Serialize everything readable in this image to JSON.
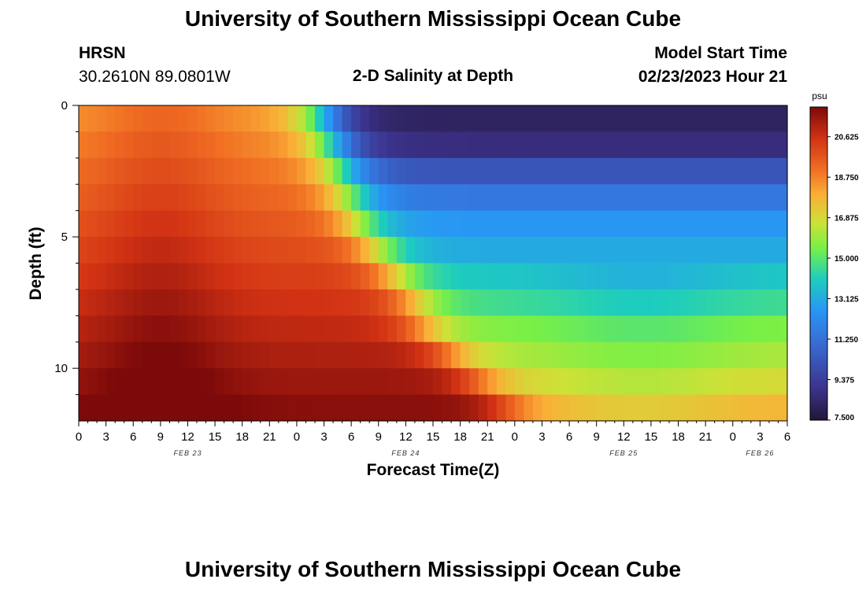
{
  "page": {
    "title": "University of Southern Mississippi Ocean Cube",
    "footer_title": "University of Southern Mississippi Ocean Cube"
  },
  "header": {
    "station": "HRSN",
    "coords": "30.2610N  89.0801W",
    "subtitle": "2-D Salinity at Depth",
    "model_label": "Model Start Time",
    "model_time": "02/23/2023 Hour 21"
  },
  "chart_data": {
    "type": "heatmap",
    "title": "2-D Salinity at Depth",
    "xlabel": "Forecast Time(Z)",
    "ylabel": "Depth (ft)",
    "x_ticks": [
      "0",
      "3",
      "6",
      "9",
      "12",
      "15",
      "18",
      "21",
      "0",
      "3",
      "6",
      "9",
      "12",
      "15",
      "18",
      "21",
      "0",
      "3",
      "6",
      "9",
      "12",
      "15",
      "18",
      "21",
      "0",
      "3",
      "6"
    ],
    "x_range_hours": [
      0,
      78
    ],
    "x_month_labels": [
      {
        "label": "FEB 23",
        "hour": 12
      },
      {
        "label": "FEB 24",
        "hour": 36
      },
      {
        "label": "FEB 25",
        "hour": 60
      },
      {
        "label": "FEB 26",
        "hour": 75
      }
    ],
    "y_ticks": [
      "0",
      "5",
      "10"
    ],
    "y_range_ft": [
      0,
      12
    ],
    "colorbar": {
      "unit": "psu",
      "min": 7.5,
      "max": 22.0,
      "tick_labels": [
        "20.625",
        "18.750",
        "16.875",
        "15.000",
        "13.125",
        "11.250",
        "9.375",
        "7.500"
      ],
      "tick_values": [
        20.625,
        18.75,
        16.875,
        15.0,
        13.125,
        11.25,
        9.375,
        7.5
      ]
    },
    "depth_levels_ft": [
      0,
      1,
      2,
      3,
      4,
      5,
      6,
      7,
      8,
      9,
      10,
      11
    ],
    "transition_hours_by_depth": [
      27,
      28,
      29,
      30,
      31,
      33,
      35,
      37,
      38,
      41,
      44,
      47
    ],
    "fresh_values_by_depth": [
      8.2,
      8.7,
      10.2,
      11.5,
      12.6,
      13.1,
      13.9,
      14.6,
      15.6,
      16.2,
      16.9,
      17.8
    ],
    "surface_salty_value": 18.4,
    "bottom_salty_value": 21.8
  }
}
